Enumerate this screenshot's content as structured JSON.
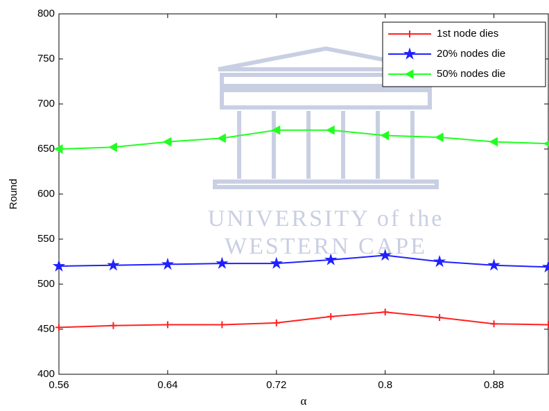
{
  "chart_data": {
    "type": "line",
    "x_label": "α",
    "y_label": "Round",
    "x": [
      0.56,
      0.6,
      0.64,
      0.68,
      0.72,
      0.76,
      0.8,
      0.84,
      0.88,
      0.92
    ],
    "series": [
      {
        "name": "1st node dies",
        "color": "#ff2020",
        "marker": "plus",
        "values": [
          452,
          454,
          455,
          455,
          457,
          464,
          469,
          463,
          456,
          455
        ]
      },
      {
        "name": "20% nodes die",
        "color": "#2020ff",
        "marker": "star",
        "values": [
          520,
          521,
          522,
          523,
          523,
          527,
          532,
          525,
          521,
          519
        ]
      },
      {
        "name": "50% nodes die",
        "color": "#20ff20",
        "marker": "triangle-left",
        "values": [
          650,
          652,
          658,
          662,
          671,
          671,
          665,
          663,
          658,
          656
        ]
      }
    ],
    "xlim": [
      0.56,
      0.92
    ],
    "xticks": [
      0.56,
      0.64,
      0.72,
      0.8,
      0.88
    ],
    "ylim": [
      400,
      800
    ],
    "yticks": [
      400,
      450,
      500,
      550,
      600,
      650,
      700,
      750,
      800
    ],
    "grid": false,
    "legend": "top-right",
    "watermark": [
      "UNIVERSITY of the",
      "WESTERN CAPE"
    ]
  }
}
